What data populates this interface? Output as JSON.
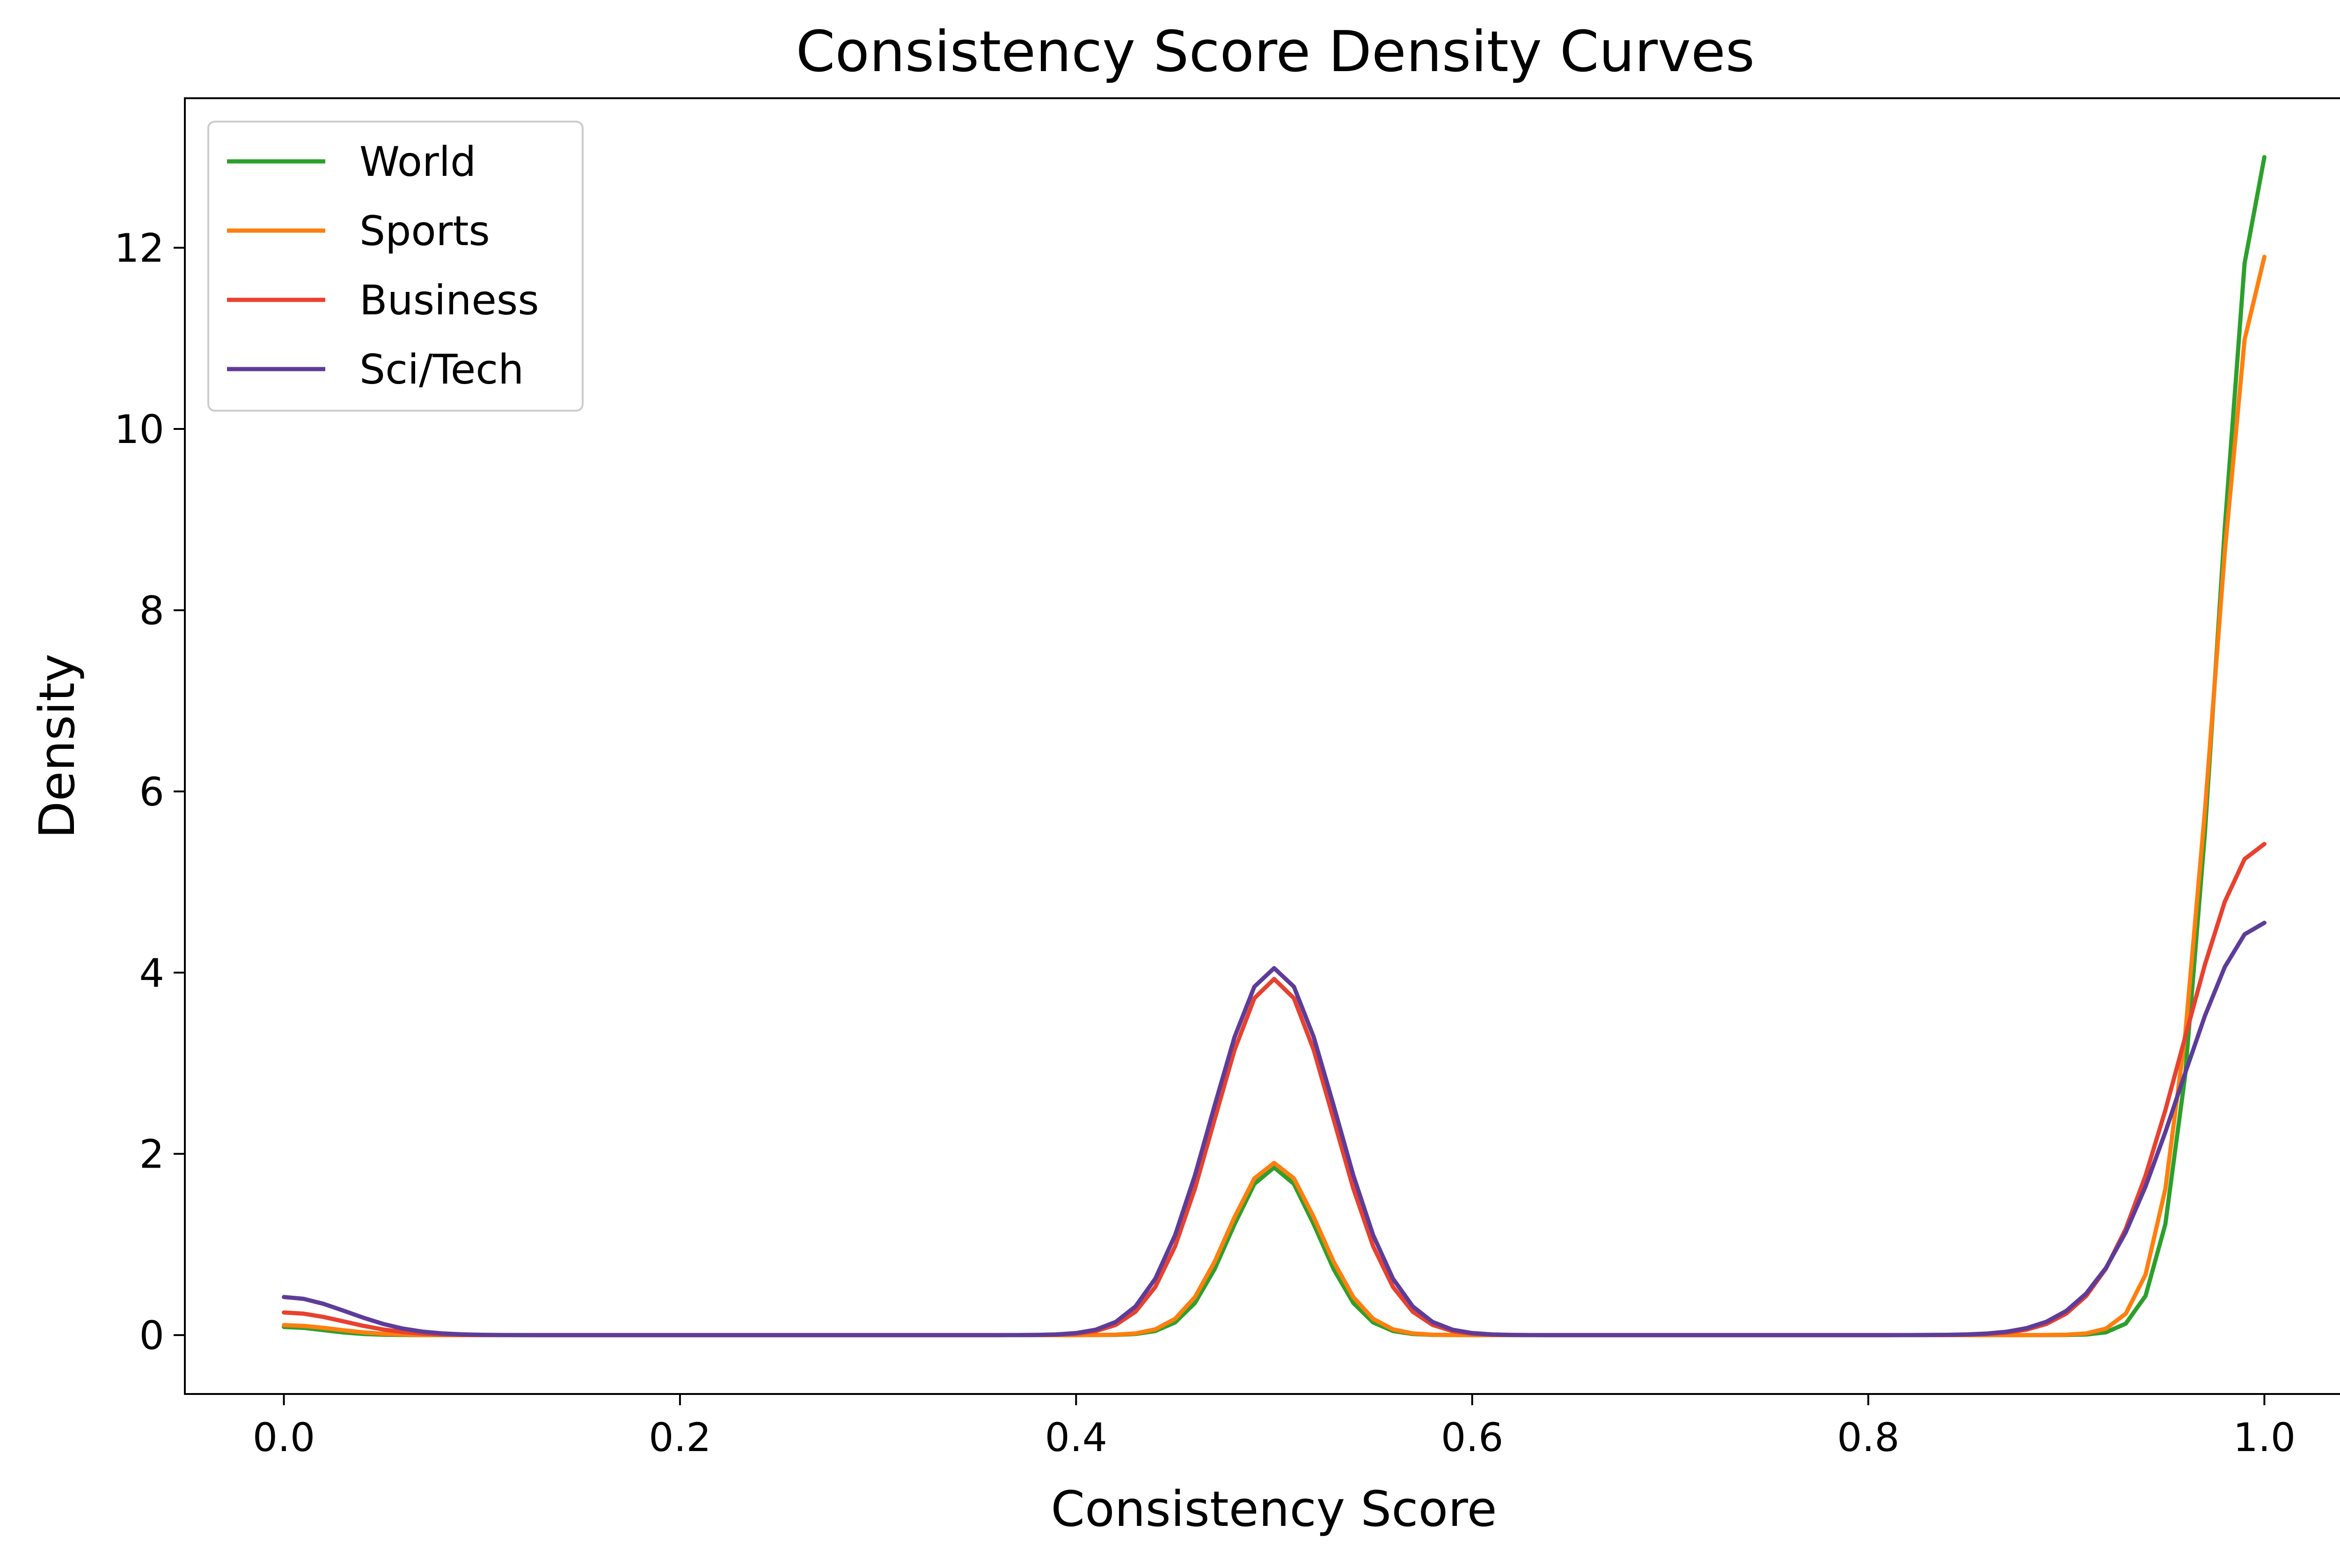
{
  "chart_data": {
    "type": "line",
    "title": "Consistency Score Density Curves",
    "xlabel": "Consistency Score",
    "ylabel": "Density",
    "xlim": [
      -0.05,
      1.05
    ],
    "ylim": [
      -0.65,
      13.65
    ],
    "xticks": [
      0.0,
      0.2,
      0.4,
      0.6,
      0.8,
      1.0
    ],
    "xtick_labels": [
      "0.0",
      "0.2",
      "0.4",
      "0.6",
      "0.8",
      "1.0"
    ],
    "yticks": [
      0,
      2,
      4,
      6,
      8,
      10,
      12
    ],
    "ytick_labels": [
      "0",
      "2",
      "4",
      "6",
      "8",
      "10",
      "12"
    ],
    "grid": false,
    "legend_position": "top-left",
    "series": [
      {
        "name": "World",
        "color": "#2ca02c",
        "components": [
          [
            0.0,
            0.02,
            0.09
          ],
          [
            0.5,
            0.022,
            1.85
          ],
          [
            1.0,
            0.023,
            13.0
          ]
        ]
      },
      {
        "name": "Sports",
        "color": "#ff7f0e",
        "components": [
          [
            0.0,
            0.025,
            0.11
          ],
          [
            0.5,
            0.023,
            1.9
          ],
          [
            1.0,
            0.025,
            11.9
          ]
        ]
      },
      {
        "name": "Business",
        "color": "#e8412f",
        "components": [
          [
            0.0,
            0.03,
            0.25
          ],
          [
            0.5,
            0.03,
            3.93
          ],
          [
            1.0,
            0.04,
            5.42
          ]
        ]
      },
      {
        "name": "Sci/Tech",
        "color": "#5e3c99",
        "components": [
          [
            0.0,
            0.032,
            0.42
          ],
          [
            0.5,
            0.031,
            4.05
          ],
          [
            1.0,
            0.042,
            4.55
          ]
        ]
      }
    ]
  }
}
